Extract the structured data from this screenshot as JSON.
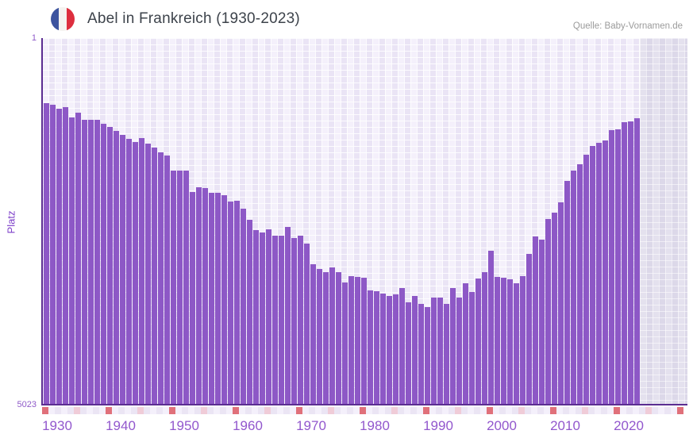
{
  "header": {
    "title": "Abel in Frankreich (1930-2023)",
    "source": "Quelle: Baby-Vornamen.de"
  },
  "y_axis": {
    "label": "Platz",
    "top_tick": "1",
    "bottom_tick": "5023"
  },
  "x_axis": {
    "ticks": [
      "1930",
      "1940",
      "1950",
      "1960",
      "1970",
      "1980",
      "1990",
      "2000",
      "2010",
      "2020"
    ]
  },
  "colors": {
    "bar": "#8d58c6",
    "axis_line": "#5b2d91",
    "plot_bg_light": "#f4f0fb",
    "plot_bg_dark": "#eae4f5",
    "nodata_bg": "#e4e1ee",
    "strip_even": "#ebe5f4",
    "strip_odd": "#f4f0fb",
    "strip_decade": "#e0707a",
    "strip_half_decade": "#f0ccd8",
    "tick_label": "#9257cd",
    "flag_blue": "#3d549f",
    "flag_white": "#f5f3f0",
    "flag_red": "#dd2e3e"
  },
  "timeline_strip": {
    "start_year": 1930,
    "end_year": 2030,
    "decade_rule": "years ending in 0 are red",
    "half_decade_rule": "years ending in 5 are pink"
  },
  "chart_data": {
    "type": "bar",
    "title": "Abel in Frankreich (1930-2023)",
    "xlabel": "",
    "ylabel": "Platz",
    "ylim": [
      1,
      5023
    ],
    "y_inverted": true,
    "grid": true,
    "x": [
      1930,
      1931,
      1932,
      1933,
      1934,
      1935,
      1936,
      1937,
      1938,
      1939,
      1940,
      1941,
      1942,
      1943,
      1944,
      1945,
      1946,
      1947,
      1948,
      1949,
      1950,
      1951,
      1952,
      1953,
      1954,
      1955,
      1956,
      1957,
      1958,
      1959,
      1960,
      1961,
      1962,
      1963,
      1964,
      1965,
      1966,
      1967,
      1968,
      1969,
      1970,
      1971,
      1972,
      1973,
      1974,
      1975,
      1976,
      1977,
      1978,
      1979,
      1980,
      1981,
      1982,
      1983,
      1984,
      1985,
      1986,
      1987,
      1988,
      1989,
      1990,
      1991,
      1992,
      1993,
      1994,
      1995,
      1996,
      1997,
      1998,
      1999,
      2000,
      2001,
      2002,
      2003,
      2004,
      2005,
      2006,
      2007,
      2008,
      2009,
      2010,
      2011,
      2012,
      2013,
      2014,
      2015,
      2016,
      2017,
      2018,
      2019,
      2020,
      2021,
      2022,
      2023
    ],
    "values": [
      895,
      915,
      970,
      950,
      1090,
      1025,
      1120,
      1120,
      1120,
      1180,
      1220,
      1275,
      1330,
      1385,
      1430,
      1375,
      1450,
      1505,
      1570,
      1615,
      1820,
      1820,
      1820,
      2115,
      2050,
      2060,
      2125,
      2125,
      2160,
      2245,
      2235,
      2345,
      2495,
      2635,
      2670,
      2625,
      2715,
      2715,
      2595,
      2745,
      2715,
      2820,
      3105,
      3170,
      3215,
      3150,
      3215,
      3355,
      3270,
      3280,
      3290,
      3465,
      3475,
      3510,
      3540,
      3520,
      3435,
      3630,
      3540,
      3650,
      3695,
      3565,
      3565,
      3650,
      3435,
      3565,
      3370,
      3490,
      3305,
      3215,
      2920,
      3280,
      3290,
      3315,
      3370,
      3270,
      2965,
      2725,
      2770,
      2485,
      2400,
      2255,
      1960,
      1820,
      1735,
      1600,
      1485,
      1440,
      1405,
      1265,
      1255,
      1155,
      1145,
      1100
    ]
  }
}
